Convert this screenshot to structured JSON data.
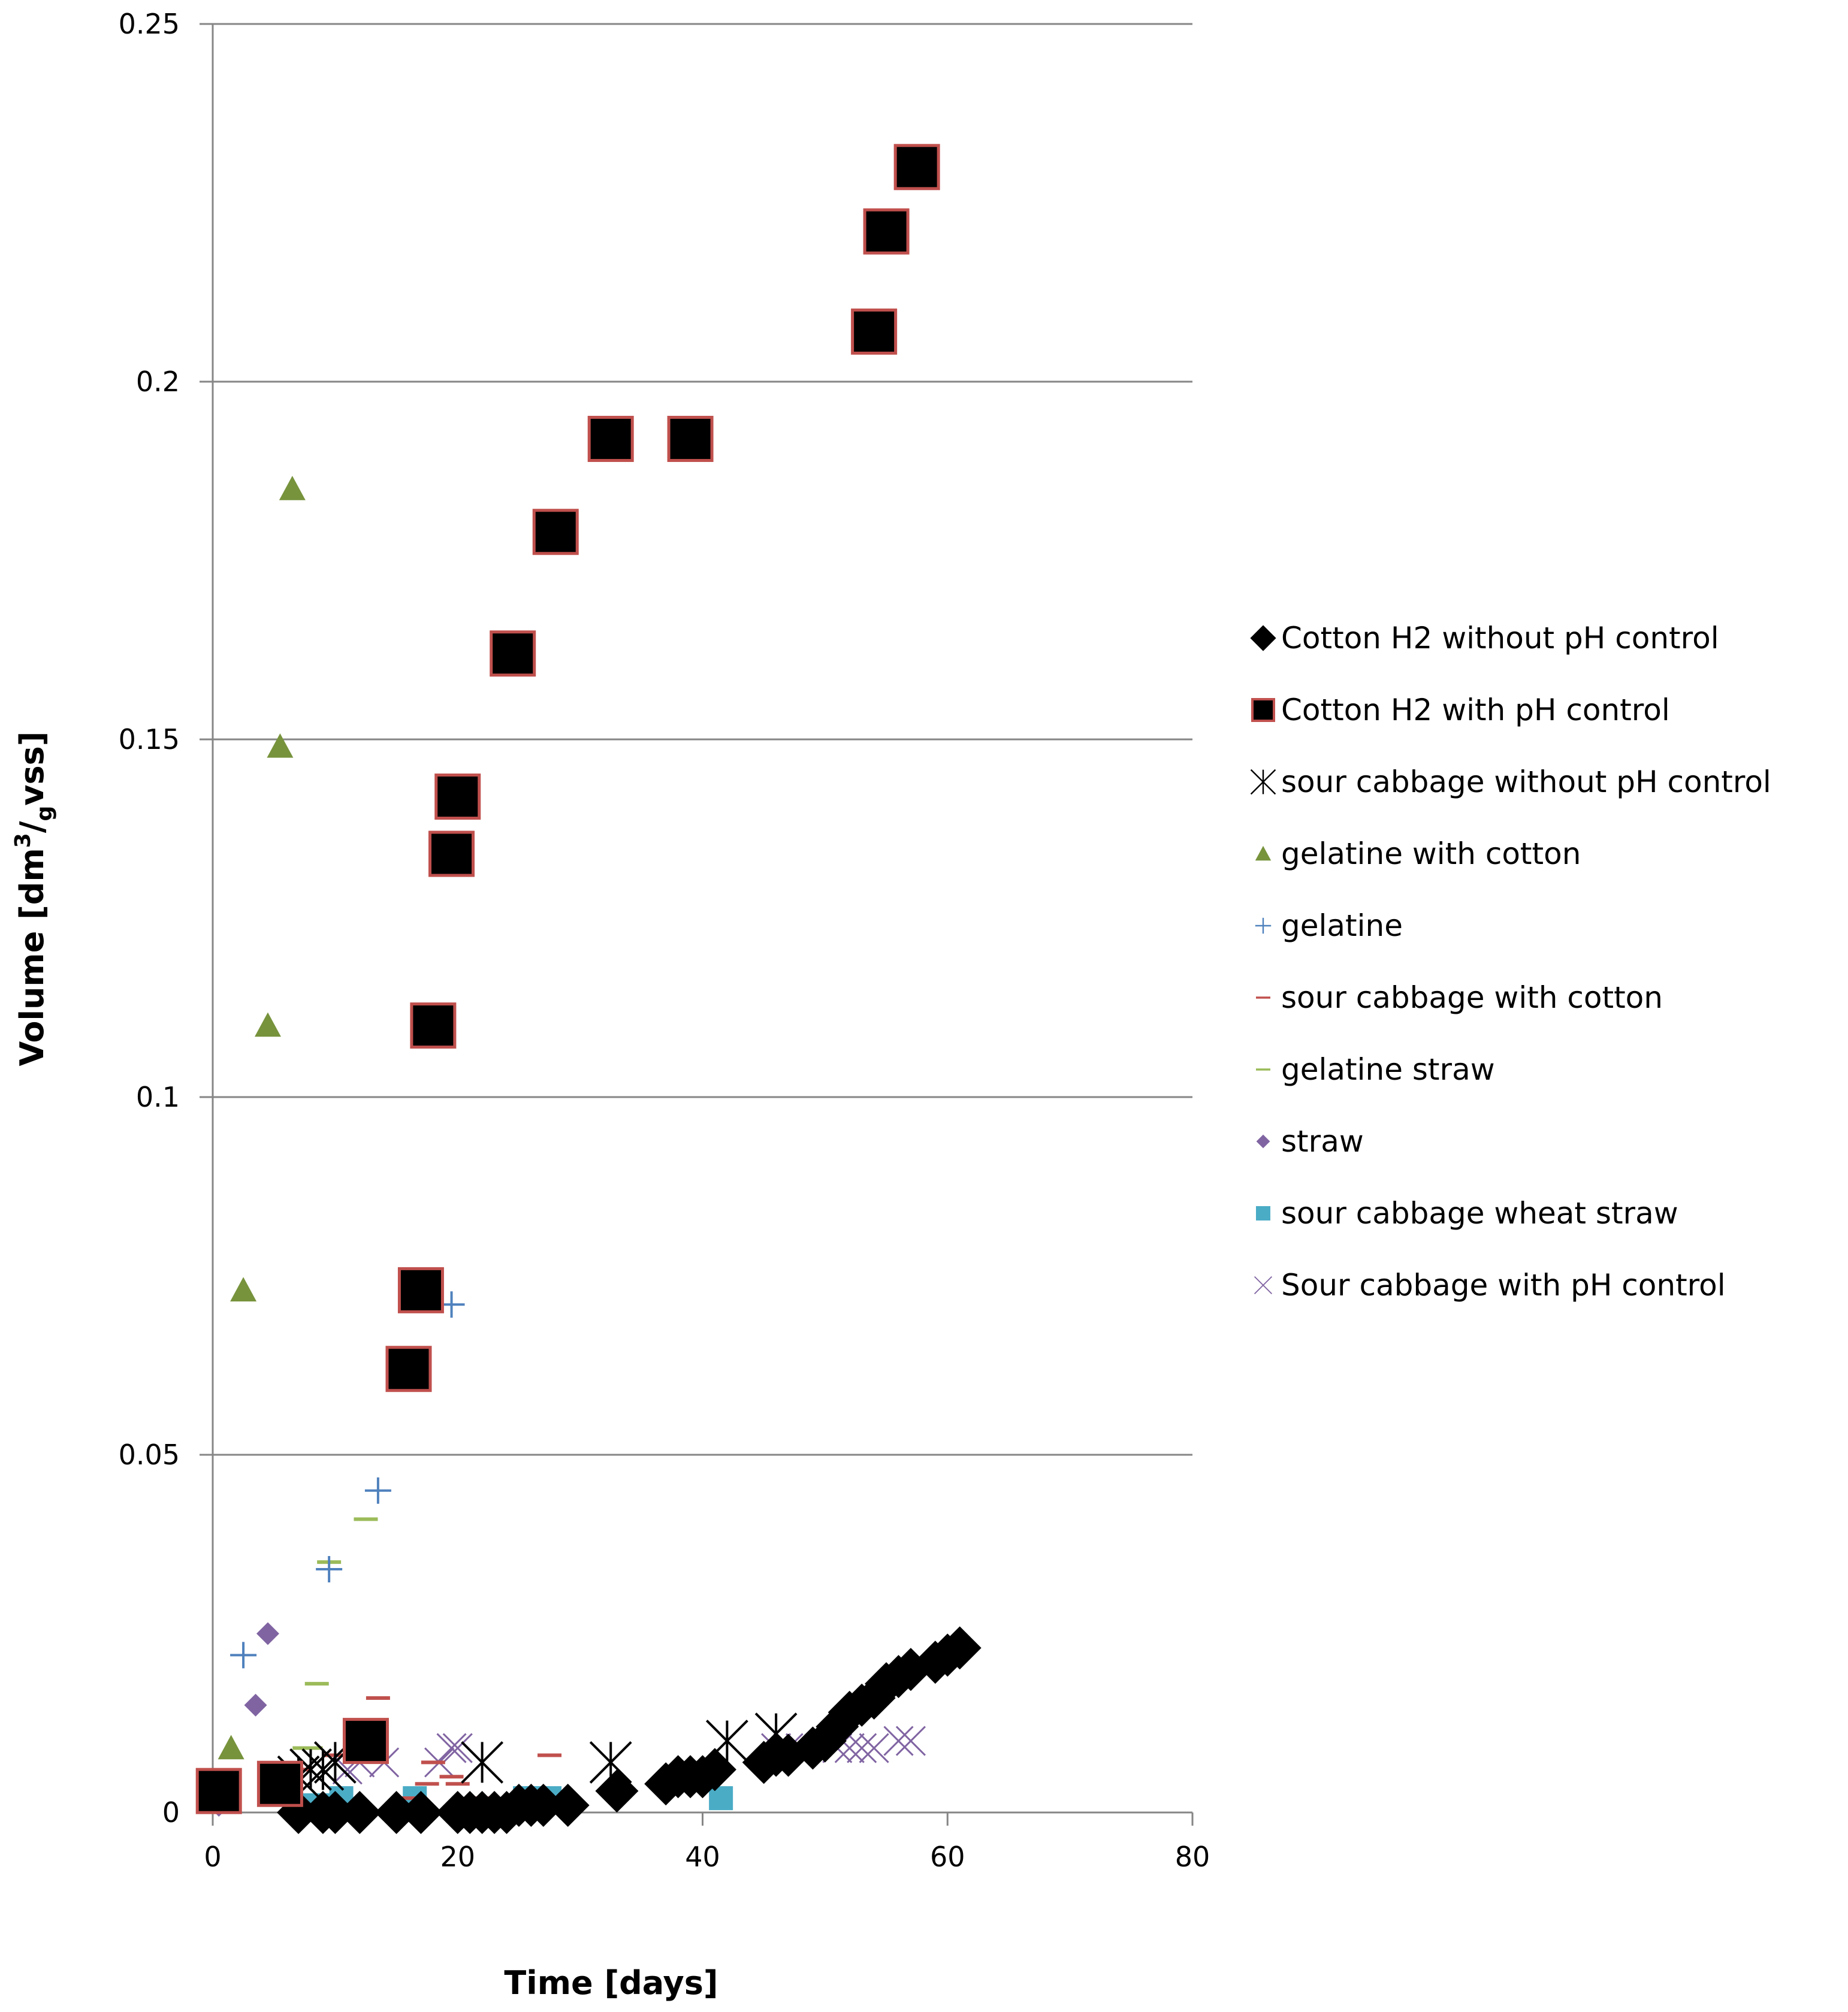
{
  "chart_data": {
    "type": "scatter",
    "title": "",
    "xlabel": "Time [days]",
    "ylabel": {
      "main": "Volume [dm",
      "sup": "3",
      "sub": "g",
      "tail": "vss]"
    },
    "xlim": [
      0,
      80
    ],
    "ylim": [
      0,
      0.25
    ],
    "xticks": [
      0,
      20,
      40,
      60,
      80
    ],
    "yticks": [
      {
        "value": 0,
        "label": "0"
      },
      {
        "value": 0.05,
        "label": "0.05"
      },
      {
        "value": 0.1,
        "label": "0.1"
      },
      {
        "value": 0.15,
        "label": "0.15"
      },
      {
        "value": 0.2,
        "label": "0.2"
      },
      {
        "value": 0.25,
        "label": "0.25"
      }
    ],
    "grid": "horizontal major gridlines",
    "legend": "right",
    "series": [
      {
        "name": "Cotton H2 without pH control",
        "marker": "diamond",
        "color": "#000000",
        "points": [
          [
            7,
            0
          ],
          [
            9,
            0
          ],
          [
            10,
            0
          ],
          [
            12,
            0
          ],
          [
            15,
            0
          ],
          [
            17,
            0
          ],
          [
            20,
            0
          ],
          [
            21,
            0
          ],
          [
            22,
            0
          ],
          [
            23,
            0
          ],
          [
            24,
            0
          ],
          [
            25,
            0.001
          ],
          [
            26,
            0.001
          ],
          [
            27,
            0.001
          ],
          [
            29,
            0.001
          ],
          [
            33,
            0.003
          ],
          [
            37,
            0.004
          ],
          [
            38,
            0.005
          ],
          [
            39,
            0.005
          ],
          [
            40,
            0.005
          ],
          [
            41,
            0.006
          ],
          [
            45,
            0.007
          ],
          [
            46,
            0.008
          ],
          [
            47,
            0.008
          ],
          [
            49,
            0.009
          ],
          [
            50,
            0.01
          ],
          [
            51,
            0.012
          ],
          [
            52,
            0.014
          ],
          [
            53,
            0.015
          ],
          [
            54,
            0.016
          ],
          [
            55,
            0.018
          ],
          [
            56,
            0.019
          ],
          [
            57,
            0.02
          ],
          [
            59,
            0.021
          ],
          [
            60,
            0.022
          ],
          [
            61,
            0.023
          ]
        ]
      },
      {
        "name": "Cotton H2 with  pH control",
        "marker": "square-large",
        "color": "#000000",
        "stroke": "#c0504d",
        "points": [
          [
            0.5,
            0.003
          ],
          [
            5.5,
            0.004
          ],
          [
            12.5,
            0.01
          ],
          [
            16,
            0.062
          ],
          [
            17,
            0.073
          ],
          [
            18,
            0.11
          ],
          [
            19.5,
            0.134
          ],
          [
            20,
            0.142
          ],
          [
            24.5,
            0.162
          ],
          [
            28,
            0.179
          ],
          [
            32.5,
            0.192
          ],
          [
            39,
            0.192
          ],
          [
            54,
            0.207
          ],
          [
            55,
            0.221
          ],
          [
            57.5,
            0.23
          ]
        ]
      },
      {
        "name": "sour cabbage without  pH control",
        "marker": "star",
        "color": "#000000",
        "points": [
          [
            7,
            0.005
          ],
          [
            8,
            0.006
          ],
          [
            9,
            0.006
          ],
          [
            10,
            0.007
          ],
          [
            22,
            0.007
          ],
          [
            32.5,
            0.007
          ],
          [
            42,
            0.01
          ],
          [
            46,
            0.011
          ]
        ]
      },
      {
        "name": "gelatine with cotton",
        "marker": "triangle",
        "color": "#77933c",
        "points": [
          [
            1,
            0.002
          ],
          [
            1.5,
            0.009
          ],
          [
            2.5,
            0.073
          ],
          [
            4.5,
            0.11
          ],
          [
            5.5,
            0.149
          ],
          [
            6.5,
            0.185
          ]
        ]
      },
      {
        "name": "gelatine",
        "marker": "plus",
        "color": "#4f81bd",
        "points": [
          [
            1,
            0.004
          ],
          [
            2.5,
            0.022
          ],
          [
            9.5,
            0.034
          ],
          [
            13.5,
            0.045
          ],
          [
            19.5,
            0.071
          ]
        ]
      },
      {
        "name": "sour cabbage with cotton",
        "marker": "dash",
        "color": "#c0504d",
        "points": [
          [
            5,
            0.005
          ],
          [
            7,
            0.006
          ],
          [
            10,
            0.008
          ],
          [
            13.5,
            0.016
          ],
          [
            16,
            0.002
          ],
          [
            17.5,
            0.004
          ],
          [
            18,
            0.007
          ],
          [
            19.5,
            0.005
          ],
          [
            20,
            0.004
          ],
          [
            22,
            0.002
          ],
          [
            23,
            0.001
          ],
          [
            24,
            0.001
          ],
          [
            25,
            0.001
          ],
          [
            26.5,
            0.001
          ],
          [
            27.5,
            0.008
          ]
        ]
      },
      {
        "name": "gelatine straw",
        "marker": "dash",
        "color": "#9bbb59",
        "points": [
          [
            5.5,
            0.004
          ],
          [
            7.5,
            0.009
          ],
          [
            8,
            0.009
          ],
          [
            8.5,
            0.018
          ],
          [
            9.5,
            0.035
          ],
          [
            12.5,
            0.041
          ]
        ]
      },
      {
        "name": "straw",
        "marker": "diamond-small",
        "color": "#8064a2",
        "points": [
          [
            0.5,
            0.001
          ],
          [
            1,
            0.002
          ],
          [
            3.5,
            0.015
          ],
          [
            4.5,
            0.025
          ]
        ]
      },
      {
        "name": "sour cabbage wheat straw",
        "marker": "square-small",
        "color": "#4bacc6",
        "points": [
          [
            7.5,
            0.001
          ],
          [
            8.5,
            0.001
          ],
          [
            9.5,
            0.001
          ],
          [
            10.5,
            0.002
          ],
          [
            16.5,
            0.002
          ],
          [
            25.5,
            0.002
          ],
          [
            26.5,
            0.002
          ],
          [
            27.5,
            0.002
          ],
          [
            41.5,
            0.002
          ]
        ]
      },
      {
        "name": "Sour cabbage with pH control",
        "marker": "x",
        "color": "#8064a2",
        "points": [
          [
            7,
            0.005
          ],
          [
            8,
            0.006
          ],
          [
            9,
            0.006
          ],
          [
            11,
            0.006
          ],
          [
            12,
            0.007
          ],
          [
            14,
            0.007
          ],
          [
            18.5,
            0.007
          ],
          [
            19.5,
            0.009
          ],
          [
            20,
            0.009
          ],
          [
            46,
            0.009
          ],
          [
            47,
            0.009
          ],
          [
            48,
            0.009
          ],
          [
            51,
            0.009
          ],
          [
            52,
            0.009
          ],
          [
            53,
            0.009
          ],
          [
            54,
            0.009
          ],
          [
            56,
            0.01
          ],
          [
            57,
            0.01
          ]
        ]
      }
    ]
  }
}
